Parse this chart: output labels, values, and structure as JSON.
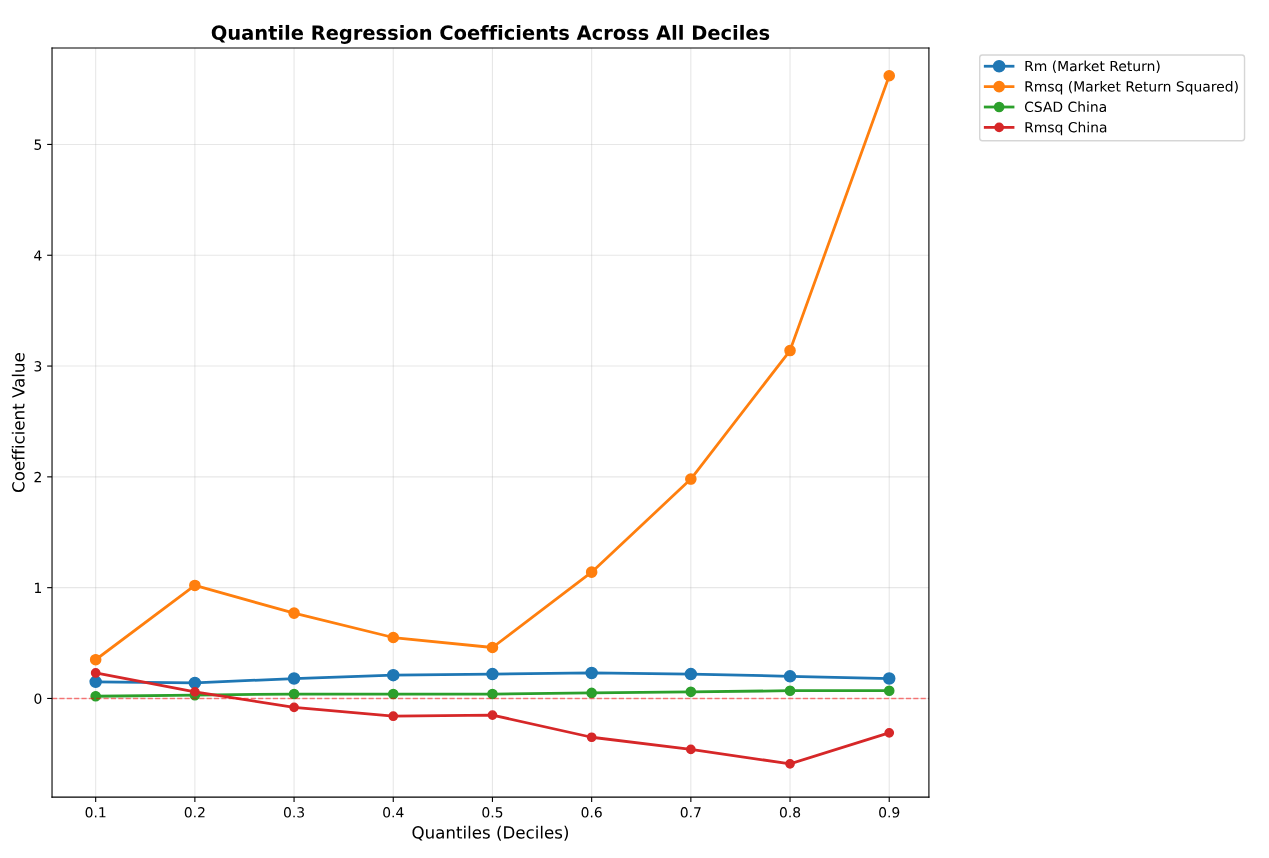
{
  "chart_data": {
    "type": "line",
    "title": "Quantile Regression Coefficients Across All Deciles",
    "xlabel": "Quantiles (Deciles)",
    "ylabel": "Coefficient Value",
    "x": [
      0.1,
      0.2,
      0.3,
      0.4,
      0.5,
      0.6,
      0.7,
      0.8,
      0.9
    ],
    "series": [
      {
        "name": "Rm (Market Return)",
        "color": "#1f77b4",
        "values": [
          0.15,
          0.14,
          0.18,
          0.21,
          0.22,
          0.23,
          0.22,
          0.2,
          0.18
        ]
      },
      {
        "name": "Rmsq (Market Return Squared)",
        "color": "#ff7f0e",
        "values": [
          0.35,
          1.02,
          0.77,
          0.55,
          0.46,
          1.14,
          1.98,
          3.14,
          5.62
        ]
      },
      {
        "name": "CSAD China",
        "color": "#2ca02c",
        "values": [
          0.02,
          0.03,
          0.04,
          0.04,
          0.04,
          0.05,
          0.06,
          0.07,
          0.07
        ]
      },
      {
        "name": "Rmsq China",
        "color": "#d62728",
        "values": [
          0.23,
          0.06,
          -0.08,
          -0.16,
          -0.15,
          -0.35,
          -0.46,
          -0.59,
          -0.31
        ]
      }
    ],
    "xlim": [
      0.056,
      0.94
    ],
    "xticks": [
      0.1,
      0.2,
      0.3,
      0.4,
      0.5,
      0.6,
      0.7,
      0.8,
      0.9
    ],
    "ylim": [
      -0.89,
      5.87
    ],
    "yticks": [
      0,
      1,
      2,
      3,
      4,
      5
    ],
    "ref_lines": [
      {
        "axis": "y",
        "value": 0,
        "color": "#ff0000",
        "line_style": "dashed"
      }
    ],
    "grid": true,
    "legend": "right",
    "marker": "circle",
    "line_style": "solid"
  }
}
